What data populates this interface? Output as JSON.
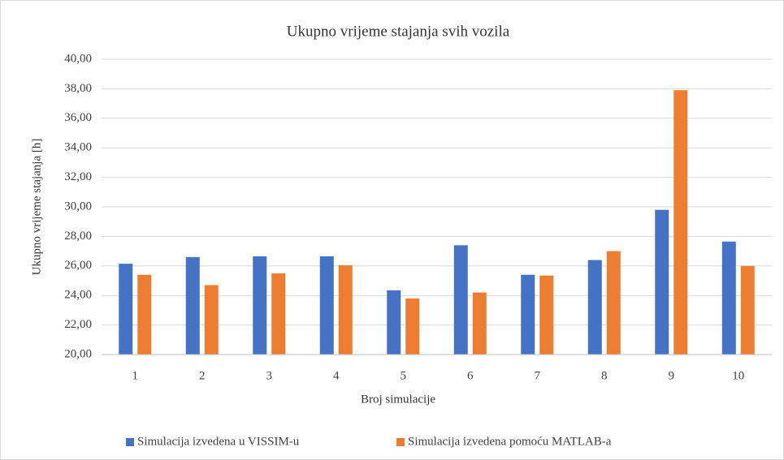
{
  "chart_data": {
    "type": "bar",
    "title": "Ukupno vrijeme stajanja svih vozila",
    "x_label": "Broj simulacije",
    "y_label": "Ukupno vrijeme stajanja [h]",
    "categories": [
      "1",
      "2",
      "3",
      "4",
      "5",
      "6",
      "7",
      "8",
      "9",
      "10"
    ],
    "series": [
      {
        "name": "Simulacija izvedena u VISSIM-u",
        "color": "#4472c4",
        "values": [
          26.15,
          26.6,
          26.65,
          26.65,
          24.35,
          27.4,
          25.4,
          26.4,
          29.8,
          27.65
        ]
      },
      {
        "name": "Simulacija izvedena pomoću MATLAB-a",
        "color": "#ed7d31",
        "values": [
          25.4,
          24.7,
          25.5,
          26.05,
          23.8,
          24.2,
          25.35,
          27.0,
          37.9,
          26.0
        ]
      }
    ],
    "ylim": [
      20,
      40
    ],
    "yticks": [
      {
        "value": 20,
        "label": "20,00"
      },
      {
        "value": 22,
        "label": "22,00"
      },
      {
        "value": 24,
        "label": "24,00"
      },
      {
        "value": 26,
        "label": "26,00"
      },
      {
        "value": 28,
        "label": "28,00"
      },
      {
        "value": 30,
        "label": "30,00"
      },
      {
        "value": 32,
        "label": "32,00"
      },
      {
        "value": 34,
        "label": "34,00"
      },
      {
        "value": 36,
        "label": "36,00"
      },
      {
        "value": 38,
        "label": "38,00"
      },
      {
        "value": 40,
        "label": "40,00"
      }
    ],
    "grid": true,
    "legend": "bottom"
  }
}
